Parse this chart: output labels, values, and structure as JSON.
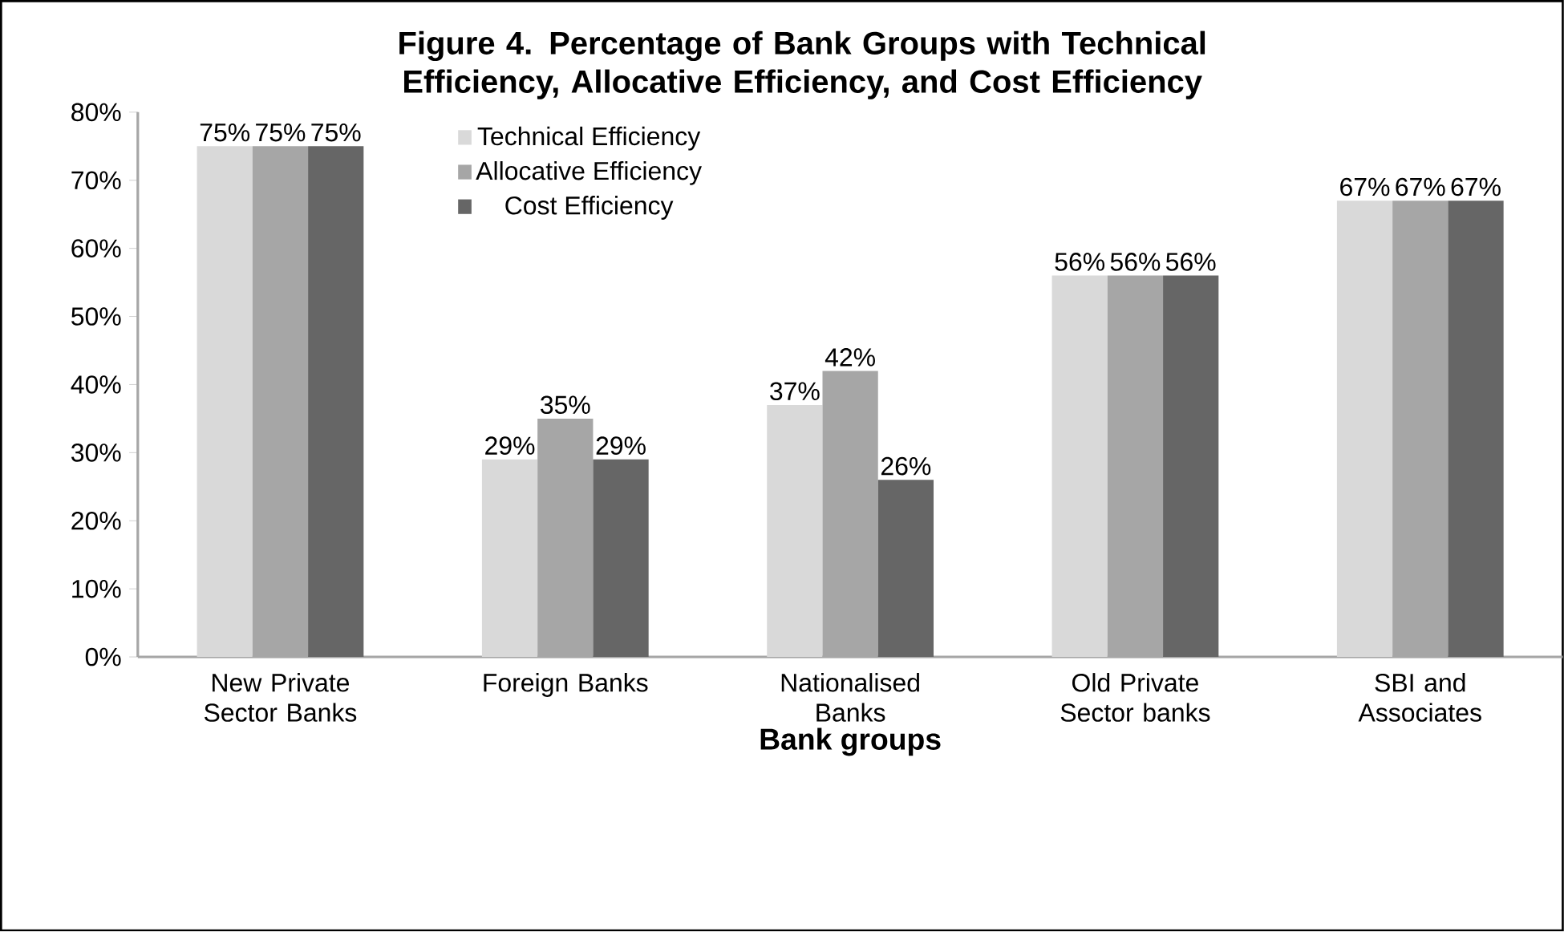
{
  "chart_data": {
    "type": "bar",
    "title": "Figure 4. Percentage of Bank Groups with Technical Efficiency, Allocative Efficiency, and Cost Efficiency",
    "xlabel": "Bank groups",
    "categories": [
      "New Private Sector Banks",
      "Foreign Banks",
      "Nationalised Banks",
      "Old Private Sector banks",
      "SBI and Associates"
    ],
    "series": [
      {
        "name": "Technical Efficiency",
        "color": "#d9d9d9",
        "values": [
          75,
          29,
          37,
          56,
          67
        ],
        "value_labels": [
          "75%",
          "29%",
          "37%",
          "56%",
          "67%"
        ]
      },
      {
        "name": "Allocative Efficiency",
        "color": "#a6a6a6",
        "values": [
          75,
          35,
          42,
          56,
          67
        ],
        "value_labels": [
          "75%",
          "35%",
          "42%",
          "56%",
          "67%"
        ]
      },
      {
        "name": "Cost Efficiency",
        "color": "#666666",
        "values": [
          75,
          29,
          26,
          56,
          67
        ],
        "value_labels": [
          "75%",
          "29%",
          "26%",
          "56%",
          "67%"
        ]
      }
    ],
    "ylim": [
      0,
      80
    ],
    "yticks": [
      {
        "value": 0,
        "label": "0%"
      },
      {
        "value": 10,
        "label": "10%"
      },
      {
        "value": 20,
        "label": "20%"
      },
      {
        "value": 30,
        "label": "30%"
      },
      {
        "value": 40,
        "label": "40%"
      },
      {
        "value": 50,
        "label": "50%"
      },
      {
        "value": 60,
        "label": "60%"
      },
      {
        "value": 70,
        "label": "70%"
      },
      {
        "value": 80,
        "label": "80%"
      }
    ],
    "grid": false,
    "legend": "top left"
  }
}
